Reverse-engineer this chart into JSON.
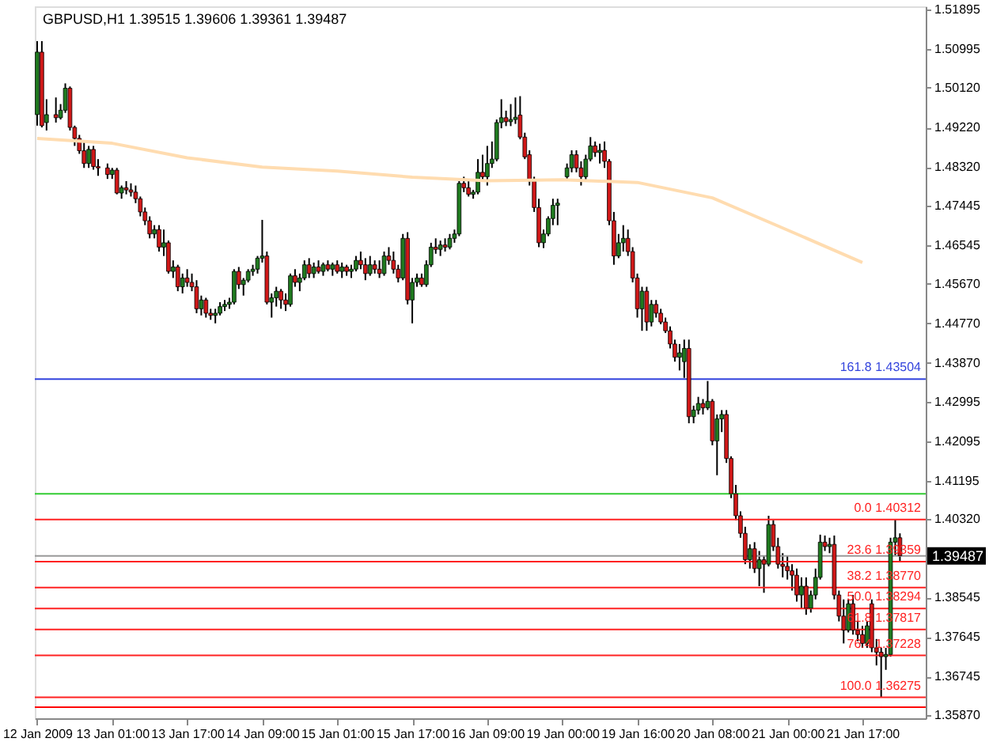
{
  "chart_data": {
    "type": "candlestick",
    "title": "GBPUSD,H1  1.39515 1.39606 1.39361 1.39487",
    "ylim": [
      1.358,
      1.5197
    ],
    "categories": [
      "12 Jan 2009",
      null,
      null,
      null,
      null,
      null,
      null,
      null,
      null,
      null,
      null,
      null,
      null,
      null,
      null,
      null,
      "13 Jan 01:00",
      null,
      null,
      null,
      null,
      null,
      null,
      null,
      null,
      null,
      null,
      null,
      null,
      null,
      null,
      null,
      "13 Jan 17:00",
      null,
      null,
      null,
      null,
      null,
      null,
      null,
      null,
      null,
      null,
      null,
      null,
      null,
      null,
      null,
      "14 Jan 09:00",
      null,
      null,
      null,
      null,
      null,
      null,
      null,
      null,
      null,
      null,
      null,
      null,
      null,
      null,
      null,
      "15 Jan 01:00",
      null,
      null,
      null,
      null,
      null,
      null,
      null,
      null,
      null,
      null,
      null,
      null,
      null,
      null,
      null,
      "15 Jan 17:00",
      null,
      null,
      null,
      null,
      null,
      null,
      null,
      null,
      null,
      null,
      null,
      null,
      null,
      null,
      null,
      "16 Jan 09:00",
      null,
      null,
      null,
      null,
      null,
      null,
      null,
      null,
      null,
      null,
      null,
      null,
      null,
      null,
      null,
      "19 Jan 00:00",
      null,
      null,
      null,
      null,
      null,
      null,
      null,
      null,
      null,
      null,
      null,
      null,
      null,
      null,
      null,
      "19 Jan 16:00",
      null,
      null,
      null,
      null,
      null,
      null,
      null,
      null,
      null,
      null,
      null,
      null,
      null,
      null,
      null,
      "20 Jan 08:00",
      null,
      null,
      null,
      null,
      null,
      null,
      null,
      null,
      null,
      null,
      null,
      null,
      null,
      null,
      null,
      "21 Jan 00:00",
      null,
      null,
      null,
      null,
      null,
      null,
      null,
      null,
      null,
      null,
      null,
      null,
      null,
      null,
      null,
      "21 Jan 17:00",
      null,
      null,
      null,
      null,
      null,
      null,
      null,
      null,
      null,
      null,
      null,
      null,
      null
    ],
    "yticks": [
      1.51895,
      1.50995,
      {
        "value": 1.5012,
        "label": "1.50120"
      },
      {
        "value": 1.4922,
        "label": "1.49220"
      },
      {
        "value": 1.4832,
        "label": "1.48320"
      },
      1.47445,
      1.46545,
      {
        "value": 1.4567,
        "label": "1.45670"
      },
      {
        "value": 1.4477,
        "label": "1.44770"
      },
      {
        "value": 1.4387,
        "label": "1.43870"
      },
      1.42995,
      1.42095,
      1.41195,
      {
        "value": 1.4032,
        "label": "1.40320"
      },
      1.38545,
      1.37645,
      1.36745,
      {
        "value": 1.3587,
        "label": "1.35870"
      }
    ],
    "grid": false,
    "legend": false,
    "series": [
      {
        "type": "candlestick",
        "ohlc": [
          [
            1.4951,
            1.5118,
            1.4926,
            1.5093
          ],
          [
            1.5093,
            1.5118,
            1.4922,
            1.4926
          ],
          [
            1.4933,
            1.4986,
            1.4915,
            1.4951
          ],
          null,
          [
            1.4951,
            1.499,
            1.4933,
            1.4944
          ],
          [
            1.4944,
            1.4975,
            1.494,
            1.4961
          ],
          [
            1.4961,
            1.5022,
            1.4955,
            1.5011
          ],
          [
            1.5011,
            1.5015,
            1.4915,
            1.4922
          ],
          [
            1.4922,
            1.4926,
            1.488,
            1.4897
          ],
          [
            1.4897,
            1.4905,
            1.4862,
            1.4869
          ],
          [
            1.4869,
            1.489,
            1.483,
            1.484
          ],
          [
            1.484,
            1.488,
            1.483,
            1.4872
          ],
          [
            1.4872,
            1.488,
            1.4826,
            1.4833
          ],
          [
            1.4833,
            1.485,
            1.4812,
            1.483
          ],
          null,
          [
            1.483,
            1.484,
            1.4805,
            1.4815
          ],
          [
            1.4815,
            1.483,
            1.4805,
            1.4825
          ],
          [
            1.4825,
            1.483,
            1.477,
            1.4773
          ],
          [
            1.4773,
            1.479,
            1.476,
            1.4785
          ],
          [
            1.4785,
            1.48,
            1.477,
            1.478
          ],
          [
            1.478,
            1.4795,
            1.4765,
            1.4775
          ],
          [
            1.4775,
            1.479,
            1.475,
            1.476
          ],
          [
            1.476,
            1.4765,
            1.472,
            1.473
          ],
          [
            1.473,
            1.474,
            1.47,
            1.471
          ],
          [
            1.471,
            1.472,
            1.467,
            1.468
          ],
          [
            1.468,
            1.47,
            1.467,
            1.469
          ],
          [
            1.469,
            1.47,
            1.464,
            1.465
          ],
          [
            1.465,
            1.469,
            1.463,
            1.466
          ],
          [
            1.466,
            1.4665,
            1.459,
            1.4595
          ],
          [
            1.4595,
            1.462,
            1.458,
            1.4605
          ],
          [
            1.4605,
            1.461,
            1.455,
            1.456
          ],
          [
            1.456,
            1.459,
            1.4545,
            1.458
          ],
          [
            1.458,
            1.46,
            1.456,
            1.457
          ],
          [
            1.457,
            1.459,
            1.455,
            1.456
          ],
          [
            1.456,
            1.4575,
            1.45,
            1.451
          ],
          [
            1.451,
            1.454,
            1.4495,
            1.453
          ],
          [
            1.453,
            1.4535,
            1.449,
            1.45
          ],
          [
            1.45,
            1.451,
            1.4485,
            1.4495
          ],
          [
            1.4495,
            1.451,
            1.4477,
            1.45
          ],
          [
            1.45,
            1.4525,
            1.4495,
            1.4515
          ],
          [
            1.4515,
            1.453,
            1.4505,
            1.452
          ],
          [
            1.452,
            1.4535,
            1.451,
            1.4525
          ],
          [
            1.4525,
            1.46,
            1.452,
            1.4595
          ],
          [
            1.4595,
            1.4605,
            1.4555,
            1.4565
          ],
          [
            1.4565,
            1.458,
            1.454,
            1.4575
          ],
          [
            1.4575,
            1.46,
            1.457,
            1.4595
          ],
          [
            1.4595,
            1.461,
            1.4585,
            1.46
          ],
          [
            1.46,
            1.463,
            1.459,
            1.4625
          ],
          [
            1.4625,
            1.4712,
            1.4615,
            1.463
          ],
          [
            1.463,
            1.464,
            1.452,
            1.4525
          ],
          [
            1.4525,
            1.4545,
            1.449,
            1.4535
          ],
          [
            1.4535,
            1.456,
            1.4515,
            1.455
          ],
          [
            1.455,
            1.4555,
            1.451,
            1.453
          ],
          [
            1.453,
            1.4545,
            1.4505,
            1.452
          ],
          [
            1.452,
            1.459,
            1.4515,
            1.4585
          ],
          [
            1.4585,
            1.46,
            1.456,
            1.457
          ],
          [
            1.457,
            1.459,
            1.455,
            1.458
          ],
          [
            1.458,
            1.462,
            1.4575,
            1.461
          ],
          [
            1.461,
            1.4625,
            1.458,
            1.459
          ],
          [
            1.459,
            1.4615,
            1.458,
            1.4605
          ],
          [
            1.4605,
            1.462,
            1.459,
            1.4595
          ],
          [
            1.4595,
            1.4615,
            1.4585,
            1.461
          ],
          [
            1.461,
            1.462,
            1.4595,
            1.46
          ],
          [
            1.46,
            1.4615,
            1.4585,
            1.461
          ],
          [
            1.461,
            1.462,
            1.459,
            1.4595
          ],
          [
            1.4595,
            1.4615,
            1.458,
            1.4605
          ],
          [
            1.4605,
            1.461,
            1.4585,
            1.4595
          ],
          [
            1.4595,
            1.461,
            1.458,
            1.46
          ],
          [
            1.46,
            1.463,
            1.4595,
            1.462
          ],
          [
            1.462,
            1.464,
            1.46,
            1.461
          ],
          [
            1.461,
            1.4625,
            1.4575,
            1.459
          ],
          [
            1.459,
            1.463,
            1.4585,
            1.461
          ],
          [
            1.461,
            1.462,
            1.459,
            1.46
          ],
          [
            1.46,
            1.462,
            1.458,
            1.459
          ],
          [
            1.459,
            1.464,
            1.4585,
            1.463
          ],
          [
            1.463,
            1.465,
            1.461,
            1.462
          ],
          [
            1.462,
            1.464,
            1.459,
            1.46
          ],
          [
            1.46,
            1.461,
            1.457,
            1.458
          ],
          [
            1.458,
            1.468,
            1.4575,
            1.467
          ],
          [
            1.467,
            1.4684,
            1.452,
            1.453
          ],
          [
            1.453,
            1.458,
            1.4477,
            1.457
          ],
          [
            1.457,
            1.459,
            1.456,
            1.458
          ],
          [
            1.458,
            1.459,
            1.456,
            1.4565
          ],
          [
            1.4565,
            1.462,
            1.456,
            1.461
          ],
          [
            1.461,
            1.466,
            1.4605,
            1.465
          ],
          [
            1.465,
            1.467,
            1.4635,
            1.4645
          ],
          [
            1.4645,
            1.4665,
            1.463,
            1.4655
          ],
          [
            1.4655,
            1.467,
            1.464,
            1.465
          ],
          [
            1.465,
            1.468,
            1.4645,
            1.467
          ],
          [
            1.467,
            1.469,
            1.466,
            1.468
          ],
          [
            1.468,
            1.48,
            1.4675,
            1.4795
          ],
          [
            1.4795,
            1.481,
            1.4775,
            1.4785
          ],
          [
            1.4785,
            1.48,
            1.4765,
            1.477
          ],
          [
            1.477,
            1.478,
            1.476,
            1.4775
          ],
          [
            1.4775,
            1.485,
            1.477,
            1.482
          ],
          [
            1.482,
            1.486,
            1.48,
            1.481
          ],
          [
            1.481,
            1.488,
            1.479,
            1.484
          ],
          [
            1.484,
            1.489,
            1.483,
            1.485
          ],
          [
            1.485,
            1.494,
            1.4845,
            1.4933
          ],
          [
            1.4933,
            1.4986,
            1.492,
            1.4944
          ],
          [
            1.4944,
            1.496,
            1.4925,
            1.4935
          ],
          [
            1.4935,
            1.4975,
            1.4925,
            1.494
          ],
          [
            1.494,
            1.499,
            1.493,
            1.4945
          ],
          [
            1.495,
            1.4993,
            1.4895,
            1.49
          ],
          [
            1.49,
            1.491,
            1.485,
            1.4855
          ],
          [
            1.486,
            1.487,
            1.479,
            1.48
          ],
          [
            1.48,
            1.481,
            1.473,
            1.474
          ],
          [
            1.474,
            1.476,
            1.465,
            1.466
          ],
          [
            1.466,
            1.469,
            1.4648,
            1.468
          ],
          [
            1.468,
            1.472,
            1.4675,
            1.4715
          ],
          [
            1.4715,
            1.476,
            1.47,
            1.4745
          ],
          [
            1.4745,
            1.476,
            1.47,
            1.475
          ],
          null,
          [
            1.481,
            1.484,
            1.48,
            1.483
          ],
          [
            1.483,
            1.487,
            1.482,
            1.486
          ],
          [
            1.486,
            1.487,
            1.482,
            1.483
          ],
          [
            1.483,
            1.4845,
            1.479,
            1.481
          ],
          [
            1.481,
            1.486,
            1.48,
            1.485
          ],
          [
            1.485,
            1.49,
            1.4845,
            1.488
          ],
          [
            1.488,
            1.489,
            1.4855,
            1.4865
          ],
          [
            1.4865,
            1.4885,
            1.484,
            1.487
          ],
          [
            1.487,
            1.489,
            1.483,
            1.4845
          ],
          [
            1.4845,
            1.485,
            1.47,
            1.471
          ],
          [
            1.471,
            1.473,
            1.461,
            1.463
          ],
          [
            1.463,
            1.468,
            1.4625,
            1.466
          ],
          [
            1.466,
            1.47,
            1.464,
            1.467
          ],
          [
            1.467,
            1.469,
            1.463,
            1.464
          ],
          [
            1.464,
            1.465,
            1.457,
            1.458
          ],
          [
            1.458,
            1.459,
            1.449,
            1.451
          ],
          [
            1.451,
            1.456,
            1.446,
            1.455
          ],
          [
            1.455,
            1.456,
            1.446,
            1.448
          ],
          [
            1.448,
            1.453,
            1.447,
            1.452
          ],
          [
            1.452,
            1.453,
            1.449,
            1.45
          ],
          [
            1.45,
            1.451,
            1.4475,
            1.448
          ],
          [
            1.448,
            1.449,
            1.4455,
            1.446
          ],
          [
            1.446,
            1.447,
            1.442,
            1.443
          ],
          [
            1.443,
            1.444,
            1.439,
            1.44
          ],
          [
            1.44,
            1.443,
            1.437,
            1.441
          ],
          [
            1.439,
            1.444,
            1.4353,
            1.442
          ],
          [
            1.442,
            1.444,
            1.425,
            1.4265
          ],
          [
            1.4265,
            1.429,
            1.425,
            1.428
          ],
          [
            1.428,
            1.431,
            1.427,
            1.4295
          ],
          [
            1.4295,
            1.4305,
            1.427,
            1.4285
          ],
          [
            1.4285,
            1.4346,
            1.428,
            1.43
          ],
          [
            1.43,
            1.4305,
            1.42,
            1.421
          ],
          [
            1.421,
            1.427,
            1.4132,
            1.426
          ],
          [
            1.426,
            1.428,
            1.423,
            1.427
          ],
          [
            1.427,
            1.428,
            1.416,
            1.417
          ],
          [
            1.417,
            1.4175,
            1.408,
            1.409
          ],
          [
            1.409,
            1.411,
            1.403,
            1.404
          ],
          [
            1.404,
            1.405,
            1.399,
            1.4
          ],
          [
            1.4,
            1.4015,
            1.393,
            1.394
          ],
          [
            1.394,
            1.3975,
            1.392,
            1.3965
          ],
          [
            1.3965,
            1.398,
            1.391,
            1.392
          ],
          [
            1.392,
            1.396,
            1.388,
            1.394
          ],
          [
            1.394,
            1.395,
            1.3865,
            1.393
          ],
          [
            1.393,
            1.404,
            1.3925,
            1.402
          ],
          [
            1.402,
            1.403,
            1.396,
            1.397
          ],
          [
            1.397,
            1.399,
            1.392,
            1.393
          ],
          [
            1.393,
            1.3955,
            1.39,
            1.3925
          ],
          [
            1.3925,
            1.395,
            1.3895,
            1.3915
          ],
          [
            1.3915,
            1.393,
            1.387,
            1.3905
          ],
          [
            1.3905,
            1.392,
            1.3845,
            1.386
          ],
          [
            1.386,
            1.39,
            1.383,
            1.388
          ],
          [
            1.388,
            1.39,
            1.3815,
            1.383
          ],
          [
            1.383,
            1.387,
            1.382,
            1.386
          ],
          [
            1.386,
            1.392,
            1.385,
            1.39
          ],
          [
            1.39,
            1.3997,
            1.3895,
            1.398
          ],
          [
            1.398,
            1.3995,
            1.396,
            1.397
          ],
          [
            1.397,
            1.399,
            1.3955,
            1.3975
          ],
          [
            1.3975,
            1.3995,
            1.385,
            1.386
          ],
          [
            1.386,
            1.387,
            1.38,
            1.3812
          ],
          [
            1.3812,
            1.385,
            1.375,
            1.378
          ],
          [
            1.378,
            1.385,
            1.3775,
            1.384
          ],
          [
            1.384,
            1.386,
            1.377,
            1.378
          ],
          [
            1.378,
            1.38,
            1.3755,
            1.377
          ],
          [
            1.377,
            1.379,
            1.374,
            1.375
          ],
          [
            1.375,
            1.38,
            1.374,
            1.379
          ],
          [
            1.384,
            1.385,
            1.373,
            1.374
          ],
          [
            1.374,
            1.376,
            1.37,
            1.373
          ],
          [
            1.373,
            1.374,
            1.3628,
            1.372
          ],
          [
            1.372,
            1.374,
            1.369,
            1.3725
          ],
          [
            1.3725,
            1.399,
            1.372,
            1.398
          ],
          [
            1.398,
            1.4031,
            1.395,
            1.399
          ],
          [
            1.399,
            1.4,
            1.3936,
            1.3949
          ],
          null,
          null,
          null,
          null,
          null
        ]
      },
      {
        "type": "line",
        "color": "#ffdcb0",
        "x": [
          "12 Jan 2009",
          "13 Jan 01:00",
          "13 Jan 17:00",
          "14 Jan 09:00",
          "15 Jan 01:00",
          "15 Jan 17:00",
          "16 Jan 09:00",
          "19 Jan 00:00",
          "19 Jan 16:00",
          "20 Jan 08:00",
          "21 Jan 00:00",
          "21 Jan 17:00"
        ],
        "values": [
          1.4897,
          1.4886,
          1.4853,
          1.4832,
          1.4823,
          1.4809,
          1.4801,
          1.4803,
          1.4797,
          1.4762,
          1.4689,
          1.4615
        ]
      }
    ],
    "ref_lines": [
      {
        "axis": "y",
        "value": 1.43504,
        "label": "161.8  1.43504",
        "color": "#3344dd"
      },
      {
        "axis": "y",
        "value": 1.39487,
        "label": "1.39487",
        "color": "#999999"
      },
      {
        "axis": "y",
        "value": 1.409,
        "label": null,
        "color": "#33cc33"
      },
      {
        "axis": "y",
        "value": 1.40312,
        "label": "0.0  1.40312",
        "color": "#ff2222"
      },
      {
        "axis": "y",
        "value": 1.39359,
        "label": "23.6  1.39359",
        "color": "#ff2222"
      },
      {
        "axis": "y",
        "value": 1.3877,
        "label": "38.2  1.38770",
        "color": "#ff2222"
      },
      {
        "axis": "y",
        "value": 1.38294,
        "label": "50.0  1.38294",
        "color": "#ff2222"
      },
      {
        "axis": "y",
        "value": 1.37817,
        "label": "61.8  1.37817",
        "color": "#ff2222"
      },
      {
        "axis": "y",
        "value": 1.37228,
        "label": "76.4  1.37228",
        "color": "#ff2222"
      },
      {
        "axis": "y",
        "value": 1.36275,
        "label": "100.0  1.36275",
        "color": "#ff2222"
      },
      {
        "axis": "y",
        "value": 1.3605,
        "label": null,
        "color": "#ff0000"
      }
    ]
  }
}
